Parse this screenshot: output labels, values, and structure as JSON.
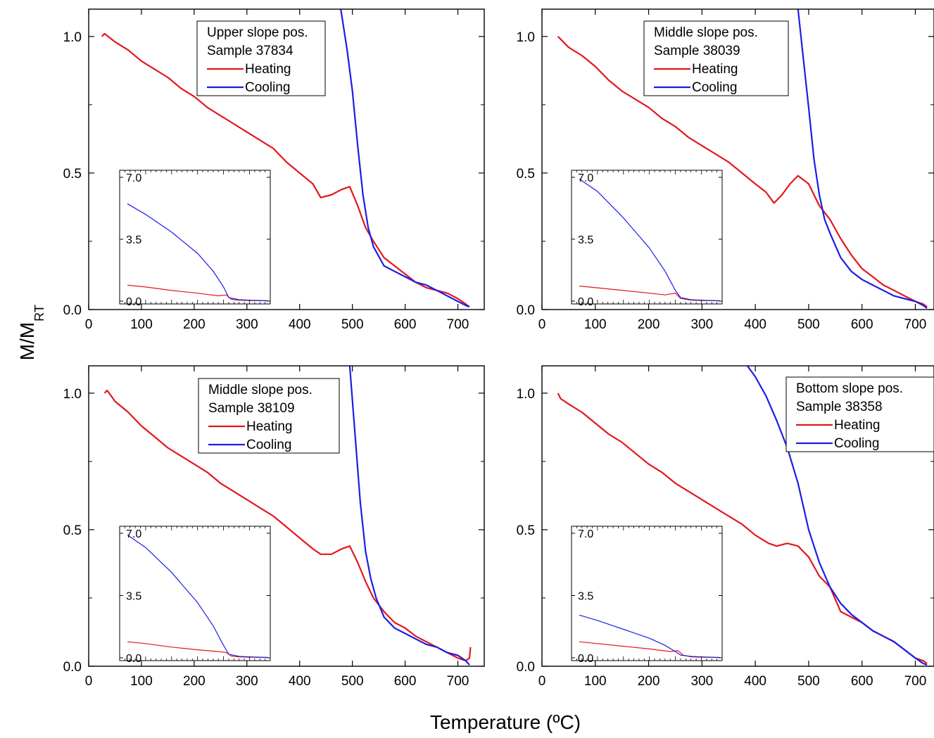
{
  "figure": {
    "xlabel": "Temperature (ºC)",
    "ylabel_main": "M/M",
    "ylabel_sub": "RT"
  },
  "colors": {
    "heating": "#e3171b",
    "cooling": "#1a1ee6"
  },
  "chart_data": [
    {
      "type": "line",
      "legend": {
        "title_lines": [
          "Upper slope pos.",
          "Sample 37834"
        ],
        "entries": [
          "Heating",
          "Cooling"
        ]
      },
      "xlim": [
        0,
        750
      ],
      "ylim": [
        0,
        1.1
      ],
      "xticks": [
        0,
        100,
        200,
        300,
        400,
        500,
        600,
        700
      ],
      "yticks": [
        0.0,
        0.5,
        1.0
      ],
      "ytick_labels": [
        "0.0",
        "0.5",
        "1.0"
      ],
      "series": [
        {
          "name": "Heating",
          "color": "#e3171b",
          "x": [
            25,
            30,
            50,
            75,
            100,
            125,
            150,
            175,
            200,
            225,
            250,
            275,
            300,
            325,
            350,
            375,
            400,
            425,
            440,
            460,
            480,
            495,
            510,
            525,
            540,
            560,
            580,
            600,
            620,
            640,
            660,
            680,
            700,
            715,
            722
          ],
          "y": [
            1.0,
            1.01,
            0.98,
            0.95,
            0.91,
            0.88,
            0.85,
            0.81,
            0.78,
            0.74,
            0.71,
            0.68,
            0.65,
            0.62,
            0.59,
            0.54,
            0.5,
            0.46,
            0.41,
            0.42,
            0.44,
            0.45,
            0.38,
            0.3,
            0.25,
            0.19,
            0.16,
            0.13,
            0.1,
            0.08,
            0.07,
            0.06,
            0.04,
            0.02,
            0.01
          ]
        },
        {
          "name": "Cooling",
          "color": "#1a1ee6",
          "x": [
            478,
            490,
            500,
            510,
            520,
            530,
            540,
            560,
            580,
            600,
            620,
            640,
            660,
            680,
            700,
            715,
            722
          ],
          "y": [
            1.1,
            0.95,
            0.8,
            0.6,
            0.42,
            0.3,
            0.23,
            0.16,
            0.14,
            0.12,
            0.1,
            0.09,
            0.07,
            0.05,
            0.03,
            0.015,
            0.01
          ]
        }
      ],
      "inset": {
        "xlim": [
          50,
          340
        ],
        "ylim": [
          0,
          7.0
        ],
        "yticks": [
          0.0,
          3.5,
          7.0
        ],
        "ytick_labels": [
          "0.0",
          "3.5",
          "7.0"
        ],
        "series": [
          {
            "name": "Heating",
            "color": "#e3171b",
            "x": [
              65,
              100,
              150,
              200,
              240,
              255,
              265,
              280,
              300,
              335
            ],
            "y": [
              0.9,
              0.8,
              0.6,
              0.45,
              0.3,
              0.35,
              0.1,
              0.05,
              0.03,
              0.02
            ]
          },
          {
            "name": "Cooling",
            "color": "#1a1ee6",
            "x": [
              65,
              100,
              150,
              200,
              230,
              250,
              260,
              280,
              300,
              335
            ],
            "y": [
              5.5,
              4.9,
              3.9,
              2.7,
              1.7,
              0.8,
              0.2,
              0.08,
              0.05,
              0.02
            ]
          }
        ]
      }
    },
    {
      "type": "line",
      "legend": {
        "title_lines": [
          "Middle slope pos.",
          "Sample 38039"
        ],
        "entries": [
          "Heating",
          "Cooling"
        ]
      },
      "xlim": [
        0,
        735
      ],
      "ylim": [
        0,
        1.1
      ],
      "xticks": [
        0,
        100,
        200,
        300,
        400,
        500,
        600,
        700
      ],
      "yticks": [
        0.0,
        0.5,
        1.0
      ],
      "ytick_labels": [
        "0.0",
        "0.5",
        "1.0"
      ],
      "series": [
        {
          "name": "Heating",
          "color": "#e3171b",
          "x": [
            30,
            50,
            75,
            100,
            125,
            150,
            175,
            200,
            225,
            250,
            275,
            300,
            325,
            350,
            375,
            400,
            420,
            435,
            450,
            465,
            480,
            500,
            520,
            540,
            560,
            580,
            600,
            620,
            640,
            660,
            680,
            700,
            715,
            722
          ],
          "y": [
            1.0,
            0.96,
            0.93,
            0.89,
            0.84,
            0.8,
            0.77,
            0.74,
            0.7,
            0.67,
            0.63,
            0.6,
            0.57,
            0.54,
            0.5,
            0.46,
            0.43,
            0.39,
            0.42,
            0.46,
            0.49,
            0.46,
            0.38,
            0.33,
            0.26,
            0.2,
            0.15,
            0.12,
            0.09,
            0.07,
            0.05,
            0.03,
            0.02,
            0.01
          ]
        },
        {
          "name": "Cooling",
          "color": "#1a1ee6",
          "x": [
            480,
            490,
            500,
            510,
            520,
            530,
            540,
            560,
            580,
            600,
            620,
            640,
            660,
            680,
            700,
            715,
            722
          ],
          "y": [
            1.1,
            0.92,
            0.74,
            0.55,
            0.42,
            0.33,
            0.28,
            0.19,
            0.14,
            0.11,
            0.09,
            0.07,
            0.05,
            0.04,
            0.03,
            0.015,
            0.005
          ]
        }
      ],
      "inset": {
        "xlim": [
          50,
          340
        ],
        "ylim": [
          0,
          7.0
        ],
        "yticks": [
          0.0,
          3.5,
          7.0
        ],
        "ytick_labels": [
          "0.0",
          "3.5",
          "7.0"
        ],
        "series": [
          {
            "name": "Heating",
            "color": "#e3171b",
            "x": [
              65,
              100,
              150,
              200,
              230,
              250,
              260,
              280,
              300,
              335
            ],
            "y": [
              0.85,
              0.75,
              0.6,
              0.45,
              0.35,
              0.45,
              0.15,
              0.05,
              0.03,
              0.02
            ]
          },
          {
            "name": "Cooling",
            "color": "#1a1ee6",
            "x": [
              65,
              100,
              150,
              200,
              230,
              250,
              260,
              280,
              300,
              335
            ],
            "y": [
              6.9,
              6.2,
              4.7,
              3.0,
              1.7,
              0.6,
              0.2,
              0.08,
              0.05,
              0.02
            ]
          }
        ]
      }
    },
    {
      "type": "line",
      "legend": {
        "title_lines": [
          "Middle slope pos.",
          "Sample 38109"
        ],
        "entries": [
          "Heating",
          "Cooling"
        ]
      },
      "xlim": [
        0,
        750
      ],
      "ylim": [
        0,
        1.1
      ],
      "xticks": [
        0,
        100,
        200,
        300,
        400,
        500,
        600,
        700
      ],
      "yticks": [
        0.0,
        0.5,
        1.0
      ],
      "ytick_labels": [
        "0.0",
        "0.5",
        "1.0"
      ],
      "series": [
        {
          "name": "Heating",
          "color": "#e3171b",
          "x": [
            30,
            35,
            50,
            75,
            100,
            125,
            150,
            175,
            200,
            225,
            250,
            275,
            300,
            325,
            350,
            375,
            400,
            425,
            440,
            460,
            480,
            495,
            510,
            525,
            540,
            560,
            580,
            600,
            620,
            640,
            660,
            680,
            700,
            715,
            722,
            724
          ],
          "y": [
            1.0,
            1.01,
            0.97,
            0.93,
            0.88,
            0.84,
            0.8,
            0.77,
            0.74,
            0.71,
            0.67,
            0.64,
            0.61,
            0.58,
            0.55,
            0.51,
            0.47,
            0.43,
            0.41,
            0.41,
            0.43,
            0.44,
            0.38,
            0.31,
            0.25,
            0.2,
            0.16,
            0.14,
            0.11,
            0.09,
            0.07,
            0.05,
            0.03,
            0.02,
            0.03,
            0.07
          ]
        },
        {
          "name": "Cooling",
          "color": "#1a1ee6",
          "x": [
            495,
            505,
            515,
            525,
            535,
            545,
            560,
            580,
            600,
            620,
            640,
            660,
            680,
            700,
            715,
            722
          ],
          "y": [
            1.1,
            0.85,
            0.6,
            0.42,
            0.32,
            0.25,
            0.18,
            0.14,
            0.12,
            0.1,
            0.08,
            0.07,
            0.05,
            0.04,
            0.02,
            0.005
          ]
        }
      ],
      "inset": {
        "xlim": [
          50,
          340
        ],
        "ylim": [
          0,
          7.0
        ],
        "yticks": [
          0.0,
          3.5,
          7.0
        ],
        "ytick_labels": [
          "0.0",
          "3.5",
          "7.0"
        ],
        "series": [
          {
            "name": "Heating",
            "color": "#e3171b",
            "x": [
              65,
              100,
              150,
              200,
              240,
              255,
              265,
              280,
              300,
              335
            ],
            "y": [
              0.9,
              0.8,
              0.6,
              0.45,
              0.35,
              0.3,
              0.1,
              0.05,
              0.03,
              0.02
            ]
          },
          {
            "name": "Cooling",
            "color": "#1a1ee6",
            "x": [
              65,
              100,
              150,
              200,
              230,
              250,
              260,
              280,
              300,
              335
            ],
            "y": [
              6.9,
              6.2,
              4.8,
              3.1,
              1.8,
              0.7,
              0.2,
              0.08,
              0.05,
              0.02
            ]
          }
        ]
      }
    },
    {
      "type": "line",
      "legend": {
        "title_lines": [
          "Bottom slope pos.",
          "Sample 38358"
        ],
        "entries": [
          "Heating",
          "Cooling"
        ]
      },
      "xlim": [
        0,
        735
      ],
      "ylim": [
        0,
        1.1
      ],
      "xticks": [
        0,
        100,
        200,
        300,
        400,
        500,
        600,
        700
      ],
      "yticks": [
        0.0,
        0.5,
        1.0
      ],
      "ytick_labels": [
        "0.0",
        "0.5",
        "1.0"
      ],
      "series": [
        {
          "name": "Heating",
          "color": "#e3171b",
          "x": [
            30,
            35,
            50,
            75,
            100,
            125,
            150,
            175,
            200,
            225,
            250,
            275,
            300,
            325,
            350,
            375,
            400,
            425,
            440,
            460,
            480,
            500,
            520,
            540,
            560,
            580,
            600,
            620,
            640,
            660,
            680,
            700,
            715,
            722
          ],
          "y": [
            1.0,
            0.98,
            0.96,
            0.93,
            0.89,
            0.85,
            0.82,
            0.78,
            0.74,
            0.71,
            0.67,
            0.64,
            0.61,
            0.58,
            0.55,
            0.52,
            0.48,
            0.45,
            0.44,
            0.45,
            0.44,
            0.4,
            0.33,
            0.29,
            0.2,
            0.18,
            0.16,
            0.13,
            0.11,
            0.09,
            0.06,
            0.03,
            0.02,
            0.01
          ]
        },
        {
          "name": "Cooling",
          "color": "#1a1ee6",
          "x": [
            385,
            400,
            420,
            440,
            460,
            480,
            500,
            520,
            540,
            560,
            580,
            600,
            620,
            640,
            660,
            680,
            700,
            715,
            722
          ],
          "y": [
            1.1,
            1.06,
            0.99,
            0.9,
            0.8,
            0.67,
            0.5,
            0.38,
            0.29,
            0.23,
            0.19,
            0.16,
            0.13,
            0.11,
            0.09,
            0.06,
            0.03,
            0.01,
            0.005
          ]
        }
      ],
      "inset": {
        "xlim": [
          50,
          340
        ],
        "ylim": [
          0,
          7.0
        ],
        "yticks": [
          0.0,
          3.5,
          7.0
        ],
        "ytick_labels": [
          "0.0",
          "3.5",
          "7.0"
        ],
        "series": [
          {
            "name": "Heating",
            "color": "#e3171b",
            "x": [
              65,
              100,
              150,
              200,
              240,
              255,
              265,
              280,
              300,
              335
            ],
            "y": [
              0.9,
              0.8,
              0.65,
              0.5,
              0.35,
              0.4,
              0.15,
              0.05,
              0.03,
              0.02
            ]
          },
          {
            "name": "Cooling",
            "color": "#1a1ee6",
            "x": [
              65,
              100,
              150,
              200,
              230,
              250,
              260,
              280,
              300,
              335
            ],
            "y": [
              2.4,
              2.1,
              1.6,
              1.1,
              0.7,
              0.35,
              0.15,
              0.08,
              0.05,
              0.02
            ]
          }
        ]
      }
    }
  ]
}
